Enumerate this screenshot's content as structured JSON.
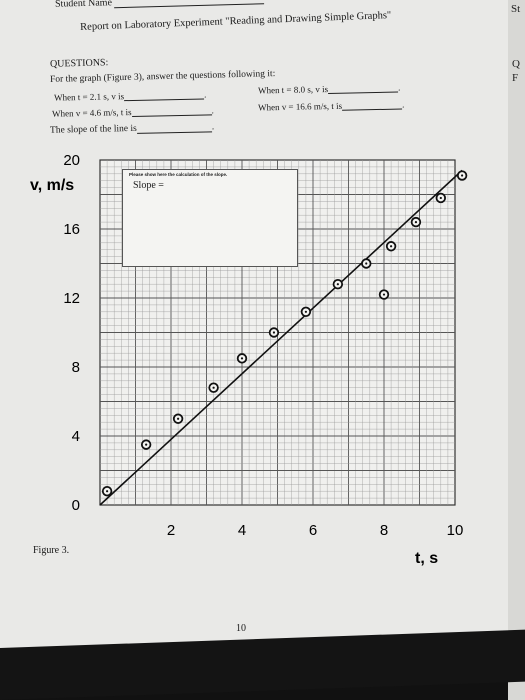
{
  "header": {
    "student_name_label": "Student Name",
    "report_title": "Report on Laboratory Experiment \"Reading and Drawing Simple Graphs\""
  },
  "questions": {
    "heading": "QUESTIONS:",
    "intro": "For the graph (Figure 3), answer the questions following it:",
    "q1": "When t = 2.1 s, v is",
    "q2": "When t = 8.0 s, v is",
    "q3": "When v = 4.6 m/s, t is",
    "q4": "When v = 16.6 m/s, t is",
    "q5": "The slope of the line is"
  },
  "slope_box": {
    "note": "Please show here the calculation of the slope.",
    "label": "Slope ="
  },
  "figure": {
    "caption": "Figure 3.",
    "page_number": "10"
  },
  "edge_text": {
    "top": "St",
    "a": "Q",
    "b": "F"
  },
  "chart_data": {
    "type": "scatter",
    "xlabel": "t, s",
    "ylabel": "v, m/s",
    "xlim": [
      0,
      10
    ],
    "ylim": [
      0,
      20
    ],
    "x_ticks": [
      "2",
      "4",
      "6",
      "8",
      "10"
    ],
    "y_ticks": [
      "20",
      "16",
      "12",
      "8",
      "4",
      "0"
    ],
    "grid": true,
    "series": [
      {
        "points": [
          {
            "x": 0.2,
            "y": 0.8
          },
          {
            "x": 1.3,
            "y": 3.5
          },
          {
            "x": 2.2,
            "y": 5.0
          },
          {
            "x": 3.2,
            "y": 6.8
          },
          {
            "x": 4.0,
            "y": 8.5
          },
          {
            "x": 4.9,
            "y": 10.0
          },
          {
            "x": 5.8,
            "y": 11.2
          },
          {
            "x": 6.7,
            "y": 12.8
          },
          {
            "x": 7.5,
            "y": 14.0
          },
          {
            "x": 8.2,
            "y": 15.0
          },
          {
            "x": 8.0,
            "y": 12.2
          },
          {
            "x": 8.9,
            "y": 16.4
          },
          {
            "x": 9.6,
            "y": 17.8
          },
          {
            "x": 10.2,
            "y": 19.1
          }
        ]
      }
    ],
    "fit_line": {
      "x": [
        0,
        10.2
      ],
      "y": [
        0,
        19.4
      ]
    }
  }
}
